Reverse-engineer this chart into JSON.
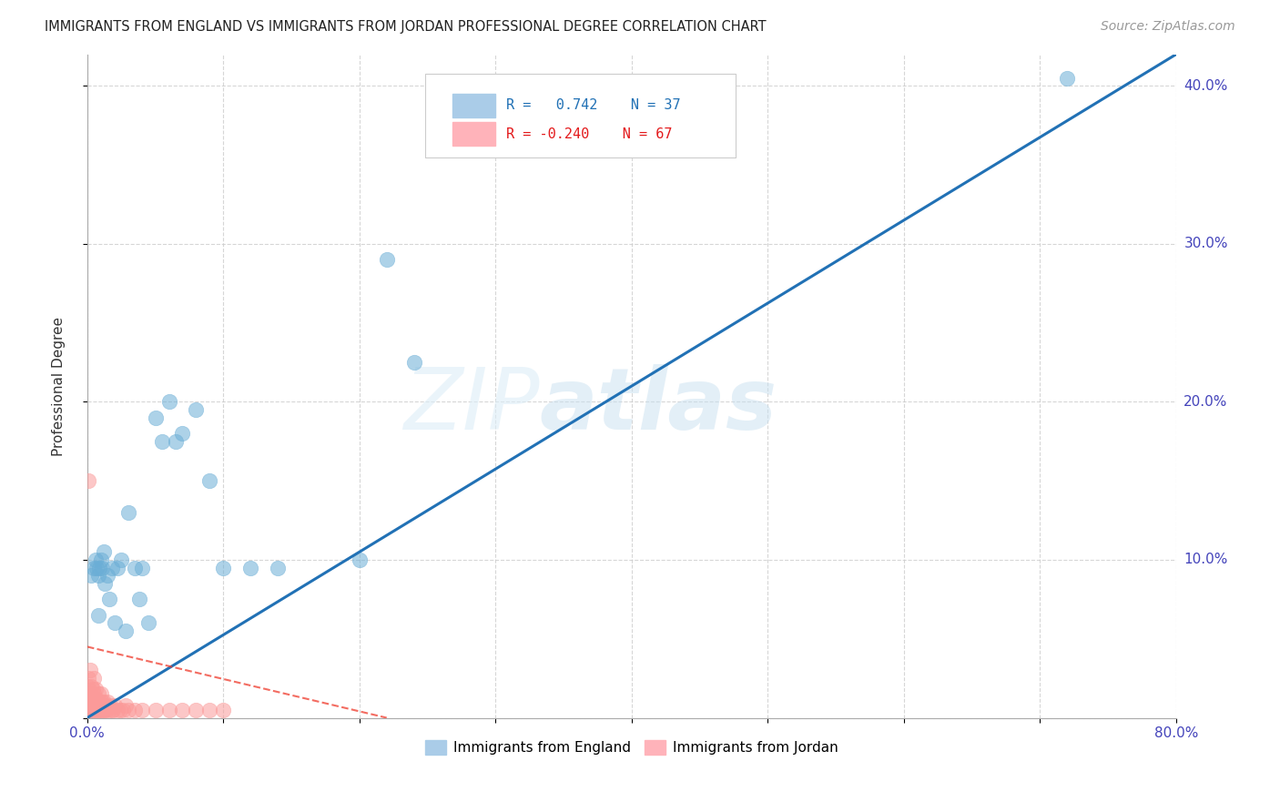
{
  "title": "IMMIGRANTS FROM ENGLAND VS IMMIGRANTS FROM JORDAN PROFESSIONAL DEGREE CORRELATION CHART",
  "source": "Source: ZipAtlas.com",
  "ylabel": "Professional Degree",
  "xlim": [
    0,
    0.8
  ],
  "ylim": [
    0,
    0.42
  ],
  "england_color": "#6baed6",
  "jordan_color": "#fb9a99",
  "england_r": 0.742,
  "england_n": 37,
  "jordan_r": -0.24,
  "jordan_n": 67,
  "england_line_color": "#2171b5",
  "jordan_line_color": "#ef3b2c",
  "watermark_zip": "ZIP",
  "watermark_atlas": "atlas",
  "background_color": "#ffffff",
  "grid_color": "#cccccc",
  "england_scatter_x": [
    0.003,
    0.005,
    0.006,
    0.007,
    0.008,
    0.009,
    0.01,
    0.011,
    0.012,
    0.013,
    0.015,
    0.016,
    0.018,
    0.02,
    0.022,
    0.025,
    0.028,
    0.03,
    0.035,
    0.038,
    0.04,
    0.045,
    0.05,
    0.055,
    0.06,
    0.065,
    0.07,
    0.08,
    0.09,
    0.1,
    0.12,
    0.14,
    0.2,
    0.22,
    0.24,
    0.72,
    0.008
  ],
  "england_scatter_y": [
    0.09,
    0.095,
    0.1,
    0.095,
    0.09,
    0.095,
    0.1,
    0.095,
    0.105,
    0.085,
    0.09,
    0.075,
    0.095,
    0.06,
    0.095,
    0.1,
    0.055,
    0.13,
    0.095,
    0.075,
    0.095,
    0.06,
    0.19,
    0.175,
    0.2,
    0.175,
    0.18,
    0.195,
    0.15,
    0.095,
    0.095,
    0.095,
    0.1,
    0.29,
    0.225,
    0.405,
    0.065
  ],
  "jordan_scatter_x": [
    0.0,
    0.0,
    0.0,
    0.0,
    0.001,
    0.001,
    0.001,
    0.001,
    0.002,
    0.002,
    0.002,
    0.002,
    0.003,
    0.003,
    0.003,
    0.003,
    0.004,
    0.004,
    0.004,
    0.004,
    0.005,
    0.005,
    0.005,
    0.005,
    0.005,
    0.006,
    0.006,
    0.006,
    0.006,
    0.007,
    0.007,
    0.007,
    0.008,
    0.008,
    0.008,
    0.009,
    0.009,
    0.01,
    0.01,
    0.01,
    0.011,
    0.011,
    0.012,
    0.012,
    0.013,
    0.013,
    0.014,
    0.015,
    0.016,
    0.017,
    0.018,
    0.019,
    0.02,
    0.022,
    0.024,
    0.026,
    0.028,
    0.03,
    0.035,
    0.04,
    0.05,
    0.06,
    0.07,
    0.08,
    0.09,
    0.1,
    0.001
  ],
  "jordan_scatter_y": [
    0.005,
    0.01,
    0.015,
    0.02,
    0.005,
    0.008,
    0.012,
    0.025,
    0.005,
    0.01,
    0.015,
    0.03,
    0.005,
    0.008,
    0.012,
    0.02,
    0.005,
    0.008,
    0.012,
    0.018,
    0.005,
    0.008,
    0.01,
    0.015,
    0.025,
    0.005,
    0.008,
    0.012,
    0.018,
    0.005,
    0.008,
    0.012,
    0.005,
    0.008,
    0.015,
    0.005,
    0.01,
    0.005,
    0.008,
    0.015,
    0.005,
    0.01,
    0.005,
    0.01,
    0.005,
    0.008,
    0.005,
    0.01,
    0.005,
    0.008,
    0.005,
    0.005,
    0.008,
    0.005,
    0.005,
    0.005,
    0.008,
    0.005,
    0.005,
    0.005,
    0.005,
    0.005,
    0.005,
    0.005,
    0.005,
    0.005,
    0.15
  ],
  "england_line_x": [
    0.0,
    0.8
  ],
  "england_line_y": [
    0.0,
    0.42
  ],
  "jordan_line_x": [
    0.0,
    0.22
  ],
  "jordan_line_y": [
    0.045,
    0.0
  ]
}
